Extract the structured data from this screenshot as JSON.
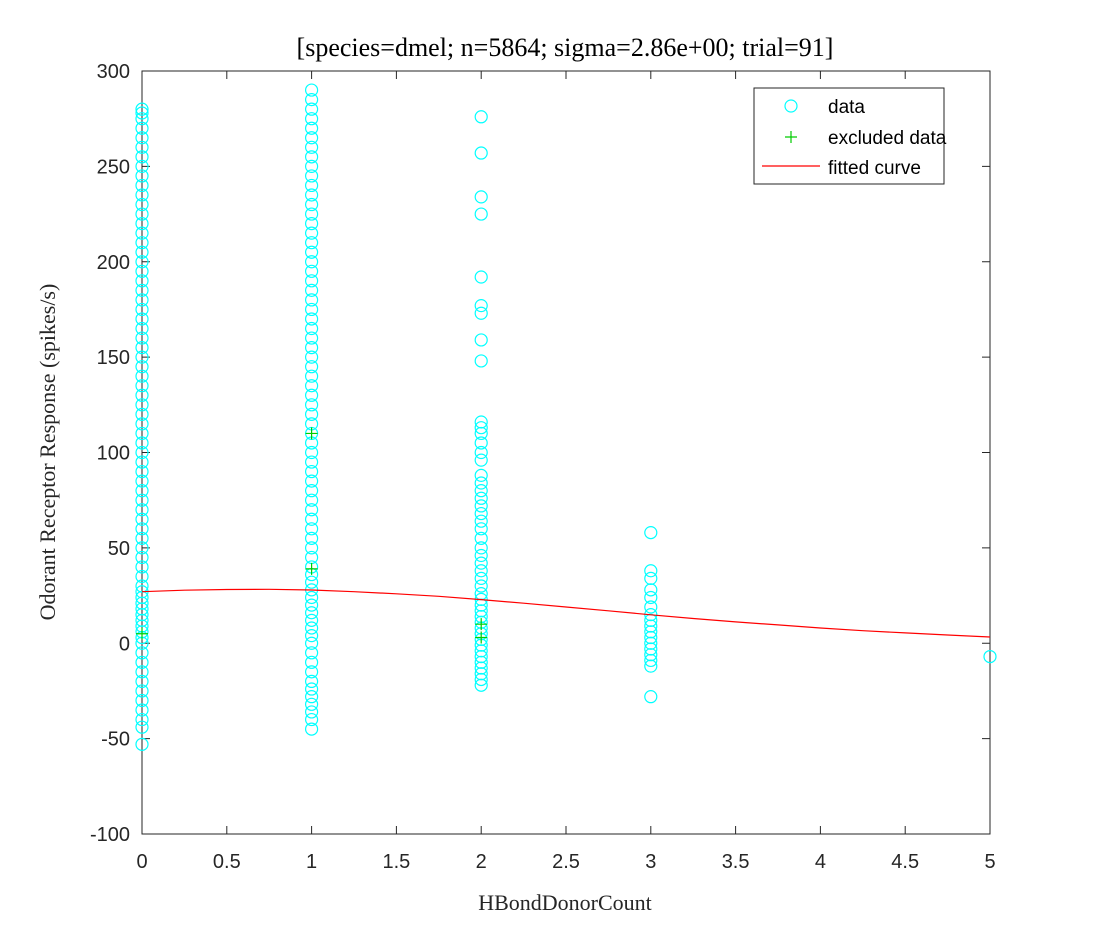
{
  "chart_data": {
    "type": "scatter",
    "title": "[species=dmel; n=5864; sigma=2.86e+00; trial=91]",
    "xlabel": "HBondDonorCount",
    "ylabel": "Odorant Receptor Response (spikes/s)",
    "xlim": [
      0,
      5
    ],
    "ylim": [
      -100,
      300
    ],
    "xticks": [
      "0",
      "0.5",
      "1",
      "1.5",
      "2",
      "2.5",
      "3",
      "3.5",
      "4",
      "4.5",
      "5"
    ],
    "yticks": [
      "-100",
      "-50",
      "0",
      "50",
      "100",
      "150",
      "200",
      "250",
      "300"
    ],
    "grid": false,
    "legend_position": "top-right",
    "legend": {
      "data": "data",
      "excluded": "excluded data",
      "fit": "fitted curve"
    },
    "series": [
      {
        "name": "data",
        "marker": "circle",
        "color": "#00FFFF",
        "points": [
          [
            0,
            -53
          ],
          [
            0,
            -44
          ],
          [
            0,
            -40
          ],
          [
            0,
            -35
          ],
          [
            0,
            -30
          ],
          [
            0,
            -25
          ],
          [
            0,
            -20
          ],
          [
            0,
            -15
          ],
          [
            0,
            -10
          ],
          [
            0,
            -5
          ],
          [
            0,
            0
          ],
          [
            0,
            3
          ],
          [
            0,
            6
          ],
          [
            0,
            9
          ],
          [
            0,
            12
          ],
          [
            0,
            15
          ],
          [
            0,
            18
          ],
          [
            0,
            21
          ],
          [
            0,
            24
          ],
          [
            0,
            27
          ],
          [
            0,
            30
          ],
          [
            0,
            35
          ],
          [
            0,
            40
          ],
          [
            0,
            45
          ],
          [
            0,
            50
          ],
          [
            0,
            55
          ],
          [
            0,
            60
          ],
          [
            0,
            65
          ],
          [
            0,
            70
          ],
          [
            0,
            75
          ],
          [
            0,
            80
          ],
          [
            0,
            85
          ],
          [
            0,
            90
          ],
          [
            0,
            95
          ],
          [
            0,
            100
          ],
          [
            0,
            105
          ],
          [
            0,
            110
          ],
          [
            0,
            115
          ],
          [
            0,
            120
          ],
          [
            0,
            125
          ],
          [
            0,
            130
          ],
          [
            0,
            135
          ],
          [
            0,
            140
          ],
          [
            0,
            145
          ],
          [
            0,
            150
          ],
          [
            0,
            155
          ],
          [
            0,
            160
          ],
          [
            0,
            165
          ],
          [
            0,
            170
          ],
          [
            0,
            175
          ],
          [
            0,
            180
          ],
          [
            0,
            185
          ],
          [
            0,
            190
          ],
          [
            0,
            195
          ],
          [
            0,
            200
          ],
          [
            0,
            205
          ],
          [
            0,
            210
          ],
          [
            0,
            215
          ],
          [
            0,
            220
          ],
          [
            0,
            225
          ],
          [
            0,
            230
          ],
          [
            0,
            235
          ],
          [
            0,
            240
          ],
          [
            0,
            245
          ],
          [
            0,
            250
          ],
          [
            0,
            255
          ],
          [
            0,
            260
          ],
          [
            0,
            265
          ],
          [
            0,
            270
          ],
          [
            0,
            275
          ],
          [
            0,
            278
          ],
          [
            0,
            280
          ],
          [
            1,
            -45
          ],
          [
            1,
            -40
          ],
          [
            1,
            -36
          ],
          [
            1,
            -32
          ],
          [
            1,
            -28
          ],
          [
            1,
            -24
          ],
          [
            1,
            -20
          ],
          [
            1,
            -15
          ],
          [
            1,
            -10
          ],
          [
            1,
            -5
          ],
          [
            1,
            0
          ],
          [
            1,
            4
          ],
          [
            1,
            8
          ],
          [
            1,
            12
          ],
          [
            1,
            16
          ],
          [
            1,
            20
          ],
          [
            1,
            24
          ],
          [
            1,
            28
          ],
          [
            1,
            32
          ],
          [
            1,
            36
          ],
          [
            1,
            40
          ],
          [
            1,
            45
          ],
          [
            1,
            50
          ],
          [
            1,
            55
          ],
          [
            1,
            60
          ],
          [
            1,
            65
          ],
          [
            1,
            70
          ],
          [
            1,
            75
          ],
          [
            1,
            80
          ],
          [
            1,
            85
          ],
          [
            1,
            90
          ],
          [
            1,
            95
          ],
          [
            1,
            100
          ],
          [
            1,
            105
          ],
          [
            1,
            110
          ],
          [
            1,
            115
          ],
          [
            1,
            120
          ],
          [
            1,
            125
          ],
          [
            1,
            130
          ],
          [
            1,
            135
          ],
          [
            1,
            140
          ],
          [
            1,
            145
          ],
          [
            1,
            150
          ],
          [
            1,
            155
          ],
          [
            1,
            160
          ],
          [
            1,
            165
          ],
          [
            1,
            170
          ],
          [
            1,
            175
          ],
          [
            1,
            180
          ],
          [
            1,
            185
          ],
          [
            1,
            190
          ],
          [
            1,
            195
          ],
          [
            1,
            200
          ],
          [
            1,
            205
          ],
          [
            1,
            210
          ],
          [
            1,
            215
          ],
          [
            1,
            220
          ],
          [
            1,
            225
          ],
          [
            1,
            230
          ],
          [
            1,
            235
          ],
          [
            1,
            240
          ],
          [
            1,
            245
          ],
          [
            1,
            250
          ],
          [
            1,
            255
          ],
          [
            1,
            260
          ],
          [
            1,
            265
          ],
          [
            1,
            270
          ],
          [
            1,
            275
          ],
          [
            1,
            280
          ],
          [
            1,
            285
          ],
          [
            1,
            290
          ],
          [
            2,
            -22
          ],
          [
            2,
            -19
          ],
          [
            2,
            -16
          ],
          [
            2,
            -13
          ],
          [
            2,
            -10
          ],
          [
            2,
            -7
          ],
          [
            2,
            -4
          ],
          [
            2,
            -1
          ],
          [
            2,
            2
          ],
          [
            2,
            5
          ],
          [
            2,
            8
          ],
          [
            2,
            11
          ],
          [
            2,
            14
          ],
          [
            2,
            17
          ],
          [
            2,
            20
          ],
          [
            2,
            23
          ],
          [
            2,
            26
          ],
          [
            2,
            30
          ],
          [
            2,
            34
          ],
          [
            2,
            38
          ],
          [
            2,
            42
          ],
          [
            2,
            46
          ],
          [
            2,
            50
          ],
          [
            2,
            55
          ],
          [
            2,
            60
          ],
          [
            2,
            64
          ],
          [
            2,
            68
          ],
          [
            2,
            72
          ],
          [
            2,
            76
          ],
          [
            2,
            80
          ],
          [
            2,
            84
          ],
          [
            2,
            88
          ],
          [
            2,
            96
          ],
          [
            2,
            100
          ],
          [
            2,
            105
          ],
          [
            2,
            110
          ],
          [
            2,
            113
          ],
          [
            2,
            116
          ],
          [
            2,
            148
          ],
          [
            2,
            159
          ],
          [
            2,
            173
          ],
          [
            2,
            177
          ],
          [
            2,
            192
          ],
          [
            2,
            225
          ],
          [
            2,
            234
          ],
          [
            2,
            257
          ],
          [
            2,
            276
          ],
          [
            3,
            -28
          ],
          [
            3,
            -12
          ],
          [
            3,
            -9
          ],
          [
            3,
            -6
          ],
          [
            3,
            -3
          ],
          [
            3,
            0
          ],
          [
            3,
            3
          ],
          [
            3,
            6
          ],
          [
            3,
            9
          ],
          [
            3,
            12
          ],
          [
            3,
            15
          ],
          [
            3,
            19
          ],
          [
            3,
            24
          ],
          [
            3,
            28
          ],
          [
            3,
            34
          ],
          [
            3,
            38
          ],
          [
            3,
            58
          ],
          [
            5,
            -7
          ]
        ]
      },
      {
        "name": "excluded data",
        "marker": "plus",
        "color": "#00CC00",
        "points": [
          [
            0,
            5
          ],
          [
            1,
            110
          ],
          [
            1,
            39
          ],
          [
            2,
            10
          ],
          [
            2,
            3
          ]
        ]
      },
      {
        "name": "fitted curve",
        "marker": "line",
        "color": "#FF0000",
        "points": [
          [
            0,
            27.0
          ],
          [
            0.25,
            27.8
          ],
          [
            0.5,
            28.2
          ],
          [
            0.75,
            28.3
          ],
          [
            1,
            27.9
          ],
          [
            1.25,
            27.0
          ],
          [
            1.5,
            25.9
          ],
          [
            1.75,
            24.6
          ],
          [
            2,
            22.9
          ],
          [
            2.25,
            21.0
          ],
          [
            2.5,
            19.0
          ],
          [
            2.75,
            17.0
          ],
          [
            3,
            14.9
          ],
          [
            3.25,
            13.0
          ],
          [
            3.5,
            11.2
          ],
          [
            3.75,
            9.6
          ],
          [
            4,
            8.0
          ],
          [
            4.25,
            6.6
          ],
          [
            4.5,
            5.4
          ],
          [
            4.75,
            4.3
          ],
          [
            5,
            3.3
          ]
        ]
      }
    ]
  }
}
